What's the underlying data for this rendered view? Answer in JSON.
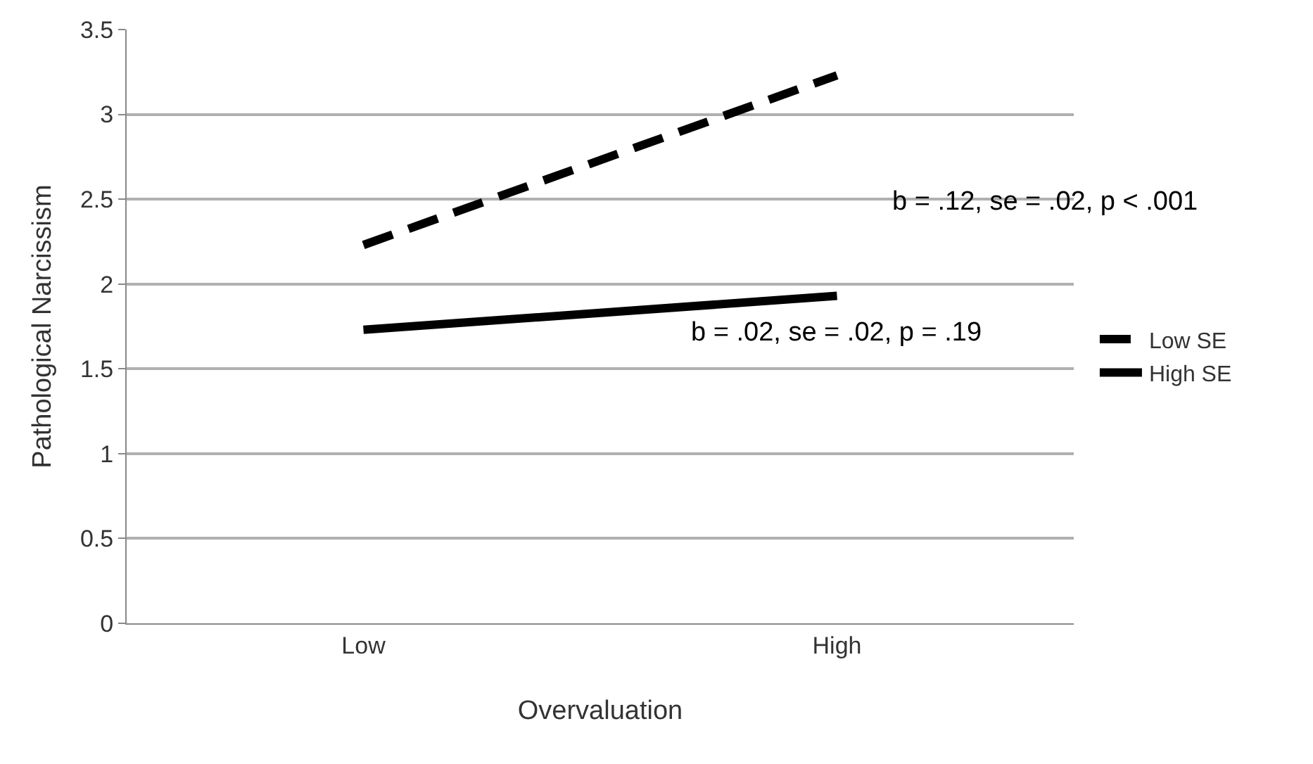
{
  "chart_data": {
    "type": "line",
    "xlabel": "Overvaluation",
    "ylabel": "Pathological Narcissism",
    "categories": [
      "Low",
      "High"
    ],
    "series": [
      {
        "name": "Low SE",
        "color": "#000000",
        "line_style": "dashed",
        "values": [
          2.23,
          3.23
        ]
      },
      {
        "name": "High SE",
        "color": "#000000",
        "line_style": "solid",
        "values": [
          1.73,
          1.93
        ]
      }
    ],
    "ylim": [
      0,
      3.5
    ],
    "yticks": [
      0,
      0.5,
      1,
      1.5,
      2,
      2.5,
      3,
      3.5
    ],
    "grid": "y",
    "legend": "right",
    "marker": "none",
    "annotations": [
      "b = .12, se = .02, p < .001",
      "b = .02, se = .02, p = .19"
    ]
  }
}
